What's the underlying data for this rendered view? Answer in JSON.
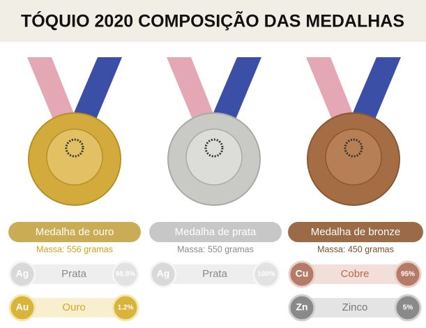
{
  "header": {
    "title": "TÓQUIO 2020 COMPOSIÇÃO DAS MEDALHAS"
  },
  "medals": [
    {
      "name": "Medalha de ouro",
      "mass": "Massa: 556 gramas",
      "components": [
        {
          "symbol": "Ag",
          "name": "Prata",
          "percent": "98.8%"
        },
        {
          "symbol": "Au",
          "name": "Ouro",
          "percent": "1.2%"
        }
      ]
    },
    {
      "name": "Medalha de prata",
      "mass": "Massa: 550 gramas",
      "components": [
        {
          "symbol": "Ag",
          "name": "Prata",
          "percent": "100%"
        }
      ]
    },
    {
      "name": "Medalha de bronze",
      "mass": "Massa: 450 gramas",
      "components": [
        {
          "symbol": "Cu",
          "name": "Cobre",
          "percent": "95%"
        },
        {
          "symbol": "Zn",
          "name": "Zinco",
          "percent": "5%"
        }
      ]
    }
  ]
}
